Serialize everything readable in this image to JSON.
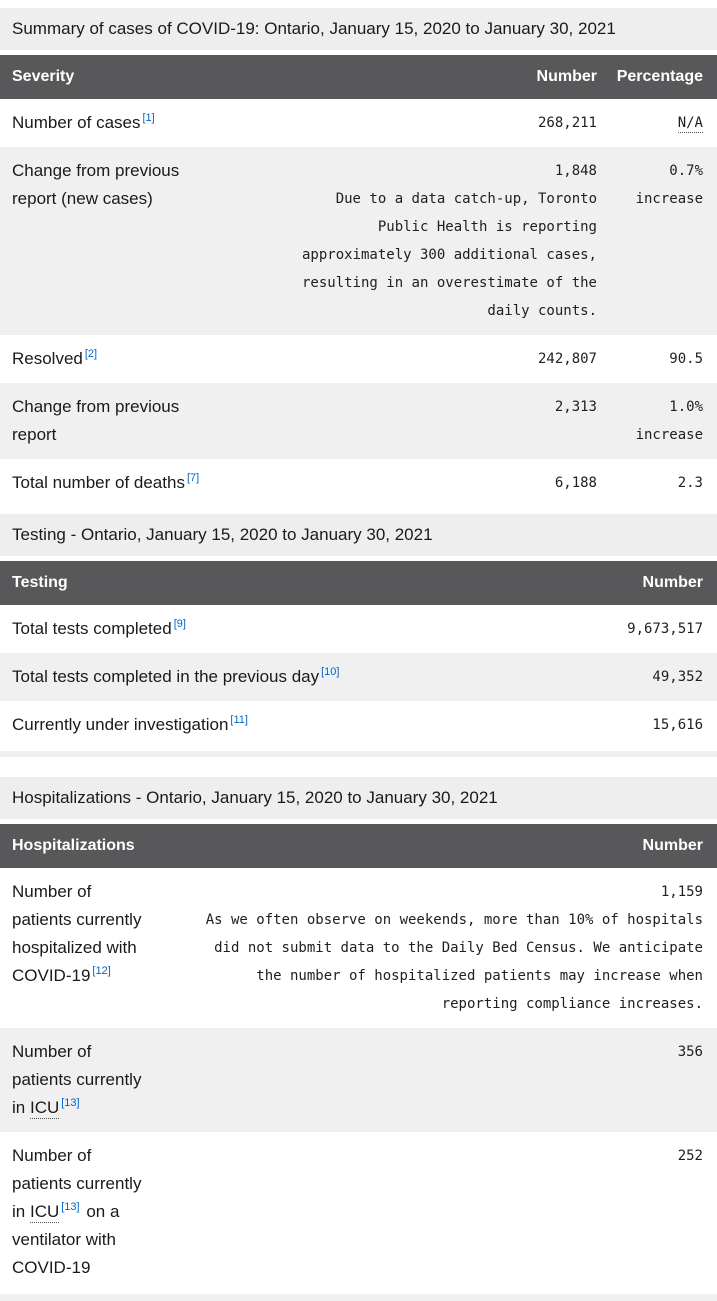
{
  "theme": {
    "header_bg": "#58585a",
    "header_text": "#ffffff",
    "caption_bg": "#eeeeee",
    "row_alt_bg": "#f0f0f1",
    "text_color": "#1a1a1a",
    "link_color": "#0066cc"
  },
  "tables": [
    {
      "id": "summary",
      "caption": "Summary of cases of COVID-19: Ontario, January 15, 2020 to January 30, 2021",
      "columns": [
        "Severity",
        "Number",
        "Percentage"
      ],
      "rows": [
        {
          "label": [
            {
              "text": "Number of cases"
            },
            {
              "sup": "[1]"
            }
          ],
          "number": "268,211",
          "pct": "N/A",
          "pct_abbr": true
        },
        {
          "label": [
            {
              "text": "Change from previous report (new cases)"
            }
          ],
          "number": "1,848",
          "note": "Due to a data catch-up, Toronto Public Health is reporting approximately 300 additional cases, resulting in an overestimate of the daily counts.",
          "pct": "0.7%",
          "pct_sub": "increase"
        },
        {
          "label": [
            {
              "text": "Resolved"
            },
            {
              "sup": "[2]"
            }
          ],
          "number": "242,807",
          "pct": "90.5"
        },
        {
          "label": [
            {
              "text": "Change from previous report"
            }
          ],
          "number": "2,313",
          "pct": "1.0%",
          "pct_sub": "increase"
        },
        {
          "label": [
            {
              "text": "Total number of deaths"
            },
            {
              "sup": "[7]"
            }
          ],
          "number": "6,188",
          "pct": "2.3"
        }
      ]
    },
    {
      "id": "testing",
      "caption": "Testing - Ontario, January 15, 2020 to January 30, 2021",
      "columns": [
        "Testing",
        "Number"
      ],
      "bottom_strip": true,
      "rows": [
        {
          "label": [
            {
              "text": "Total tests completed"
            },
            {
              "sup": "[9]"
            }
          ],
          "number": "9,673,517"
        },
        {
          "label": [
            {
              "text": "Total tests completed in the previous day"
            },
            {
              "sup": "[10]"
            }
          ],
          "number": "49,352"
        },
        {
          "label": [
            {
              "text": "Currently under investigation"
            },
            {
              "sup": "[11]"
            }
          ],
          "number": "15,616"
        }
      ]
    },
    {
      "id": "hospitalizations",
      "caption": "Hospitalizations - Ontario, January 15, 2020 to January 30, 2021",
      "columns": [
        "Hospitalizations",
        "Number"
      ],
      "rows": [
        {
          "label": [
            {
              "text": "Number of patients currently hospitalized with COVID-19"
            },
            {
              "sup": "[12]"
            }
          ],
          "number": "1,159",
          "note": "As we often observe on weekends, more than 10% of hospitals did not submit data to the Daily Bed Census. We anticipate the number of hospitalized patients may increase when reporting compliance increases."
        },
        {
          "label": [
            {
              "text": "Number of patients currently in "
            },
            {
              "abbr": "ICU"
            },
            {
              "sup": "[13]"
            }
          ],
          "number": "356"
        },
        {
          "label": [
            {
              "text": "Number of patients currently in "
            },
            {
              "abbr": "ICU"
            },
            {
              "sup": "[13]"
            },
            {
              "text": " on a ventilator with COVID-19"
            }
          ],
          "number": "252"
        }
      ]
    }
  ],
  "bottom_partial_row": true
}
